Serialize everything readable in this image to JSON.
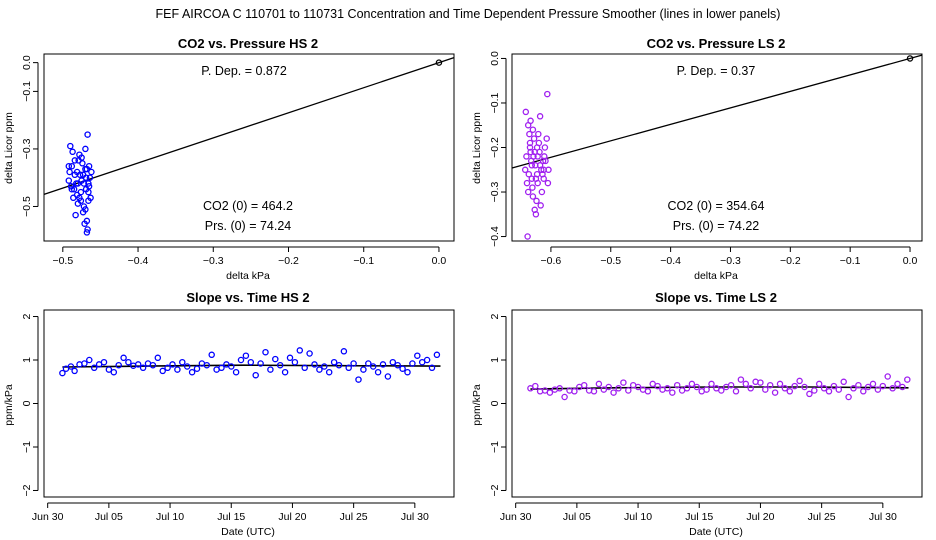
{
  "figure_title": "FEF   AIRCOA C   110701 to 110731   Concentration and Time Dependent Pressure Smoother (lines in lower panels)",
  "colors": {
    "hs": "#0000ff",
    "ls": "#a020f0",
    "axis": "#000000",
    "fit": "#000000"
  },
  "chart_data": [
    {
      "id": "pressure_hs",
      "type": "scatter",
      "title": "CO2 vs. Pressure HS 2",
      "xlabel": "delta kPa",
      "ylabel": "delta Licor ppm",
      "xlim": [
        -0.525,
        0.02
      ],
      "ylim": [
        -0.62,
        0.03
      ],
      "xticks": [
        -0.5,
        -0.4,
        -0.3,
        -0.2,
        -0.1,
        0.0
      ],
      "xtick_labels": [
        "−0.5",
        "−0.4",
        "−0.3",
        "−0.2",
        "−0.1",
        "0.0"
      ],
      "yticks": [
        -0.5,
        -0.3,
        -0.1,
        0.0
      ],
      "ytick_labels": [
        "−0.5",
        "−0.3",
        "−0.1",
        "0.0"
      ],
      "annotations": {
        "p_dep": "P. Dep. =  0.872",
        "co2_zero": "CO2 (0) =  464.2",
        "prs_zero": "Prs. (0) =  74.24"
      },
      "fit_line": {
        "slope": 0.872,
        "intercept": 0.0
      },
      "origin_point": [
        0.0,
        0.0
      ],
      "points": [
        [
          -0.492,
          -0.41
        ],
        [
          -0.488,
          -0.36
        ],
        [
          -0.485,
          -0.44
        ],
        [
          -0.481,
          -0.38
        ],
        [
          -0.478,
          -0.47
        ],
        [
          -0.475,
          -0.33
        ],
        [
          -0.472,
          -0.42
        ],
        [
          -0.47,
          -0.51
        ],
        [
          -0.468,
          -0.37
        ],
        [
          -0.466,
          -0.45
        ],
        [
          -0.49,
          -0.29
        ],
        [
          -0.487,
          -0.31
        ],
        [
          -0.483,
          -0.53
        ],
        [
          -0.48,
          -0.49
        ],
        [
          -0.477,
          -0.39
        ],
        [
          -0.474,
          -0.35
        ],
        [
          -0.471,
          -0.56
        ],
        [
          -0.469,
          -0.4
        ],
        [
          -0.467,
          -0.58
        ],
        [
          -0.465,
          -0.43
        ],
        [
          -0.491,
          -0.38
        ],
        [
          -0.486,
          -0.47
        ],
        [
          -0.482,
          -0.42
        ],
        [
          -0.479,
          -0.34
        ],
        [
          -0.476,
          -0.45
        ],
        [
          -0.473,
          -0.52
        ],
        [
          -0.47,
          -0.37
        ],
        [
          -0.468,
          -0.59
        ],
        [
          -0.466,
          -0.48
        ],
        [
          -0.464,
          -0.4
        ],
        [
          -0.489,
          -0.43
        ],
        [
          -0.484,
          -0.39
        ],
        [
          -0.481,
          -0.46
        ],
        [
          -0.478,
          -0.32
        ],
        [
          -0.475,
          -0.41
        ],
        [
          -0.472,
          -0.5
        ],
        [
          -0.469,
          -0.44
        ],
        [
          -0.467,
          -0.25
        ],
        [
          -0.465,
          -0.36
        ],
        [
          -0.463,
          -0.47
        ],
        [
          -0.492,
          -0.36
        ],
        [
          -0.488,
          -0.44
        ],
        [
          -0.484,
          -0.34
        ],
        [
          -0.48,
          -0.42
        ],
        [
          -0.476,
          -0.48
        ],
        [
          -0.473,
          -0.39
        ],
        [
          -0.47,
          -0.3
        ],
        [
          -0.468,
          -0.55
        ],
        [
          -0.466,
          -0.42
        ],
        [
          -0.462,
          -0.38
        ]
      ]
    },
    {
      "id": "pressure_ls",
      "type": "scatter",
      "title": "CO2 vs. Pressure LS 2",
      "xlabel": "delta kPa",
      "ylabel": "delta Licor ppm",
      "xlim": [
        -0.665,
        0.02
      ],
      "ylim": [
        -0.41,
        0.01
      ],
      "xticks": [
        -0.6,
        -0.5,
        -0.4,
        -0.3,
        -0.2,
        -0.1,
        0.0
      ],
      "xtick_labels": [
        "−0.6",
        "−0.5",
        "−0.4",
        "−0.3",
        "−0.2",
        "−0.1",
        "0.0"
      ],
      "yticks": [
        -0.4,
        -0.3,
        -0.2,
        -0.1,
        0.0
      ],
      "ytick_labels": [
        "−0.4",
        "−0.3",
        "−0.2",
        "−0.1",
        "0.0"
      ],
      "annotations": {
        "p_dep": "P. Dep. =  0.37",
        "co2_zero": "CO2 (0) =  354.64",
        "prs_zero": "Prs. (0) =  74.22"
      },
      "fit_line": {
        "slope": 0.37,
        "intercept": 0.0
      },
      "origin_point": [
        0.0,
        0.0
      ],
      "points": [
        [
          -0.642,
          -0.12
        ],
        [
          -0.638,
          -0.15
        ],
        [
          -0.635,
          -0.2
        ],
        [
          -0.632,
          -0.24
        ],
        [
          -0.628,
          -0.18
        ],
        [
          -0.625,
          -0.27
        ],
        [
          -0.622,
          -0.22
        ],
        [
          -0.618,
          -0.13
        ],
        [
          -0.615,
          -0.3
        ],
        [
          -0.612,
          -0.25
        ],
        [
          -0.64,
          -0.28
        ],
        [
          -0.636,
          -0.17
        ],
        [
          -0.633,
          -0.23
        ],
        [
          -0.63,
          -0.31
        ],
        [
          -0.627,
          -0.21
        ],
        [
          -0.623,
          -0.26
        ],
        [
          -0.62,
          -0.19
        ],
        [
          -0.617,
          -0.33
        ],
        [
          -0.613,
          -0.23
        ],
        [
          -0.61,
          -0.2
        ],
        [
          -0.641,
          -0.22
        ],
        [
          -0.637,
          -0.26
        ],
        [
          -0.634,
          -0.14
        ],
        [
          -0.631,
          -0.29
        ],
        [
          -0.626,
          -0.24
        ],
        [
          -0.624,
          -0.32
        ],
        [
          -0.621,
          -0.17
        ],
        [
          -0.616,
          -0.25
        ],
        [
          -0.611,
          -0.22
        ],
        [
          -0.606,
          -0.08
        ],
        [
          -0.639,
          -0.4
        ],
        [
          -0.635,
          -0.19
        ],
        [
          -0.632,
          -0.27
        ],
        [
          -0.629,
          -0.22
        ],
        [
          -0.625,
          -0.35
        ],
        [
          -0.622,
          -0.28
        ],
        [
          -0.619,
          -0.21
        ],
        [
          -0.614,
          -0.26
        ],
        [
          -0.609,
          -0.23
        ],
        [
          -0.605,
          -0.28
        ],
        [
          -0.643,
          -0.25
        ],
        [
          -0.638,
          -0.3
        ],
        [
          -0.634,
          -0.21
        ],
        [
          -0.63,
          -0.16
        ],
        [
          -0.627,
          -0.34
        ],
        [
          -0.623,
          -0.2
        ],
        [
          -0.618,
          -0.24
        ],
        [
          -0.612,
          -0.27
        ],
        [
          -0.607,
          -0.18
        ],
        [
          -0.604,
          -0.25
        ]
      ]
    },
    {
      "id": "slope_hs",
      "type": "scatter",
      "title": "Slope vs. Time HS 2",
      "xlabel": "Date (UTC)",
      "ylabel": "ppm/kPa",
      "xlim": [
        -0.3,
        33.2
      ],
      "ylim": [
        -2.15,
        2.15
      ],
      "xticks": [
        0,
        5,
        10,
        15,
        20,
        25,
        30
      ],
      "xtick_labels": [
        "Jun 30",
        "Jul 05",
        "Jul 10",
        "Jul 15",
        "Jul 20",
        "Jul 25",
        "Jul 30"
      ],
      "yticks": [
        -2,
        -1,
        0,
        1,
        2
      ],
      "ytick_labels": [
        "−2",
        "−1",
        "0",
        "1",
        "2"
      ],
      "smoother": [
        [
          1.2,
          0.84
        ],
        [
          8,
          0.86
        ],
        [
          16,
          0.88
        ],
        [
          24,
          0.87
        ],
        [
          32.1,
          0.86
        ]
      ],
      "points": [
        [
          1.2,
          0.7
        ],
        [
          1.5,
          0.8
        ],
        [
          1.9,
          0.85
        ],
        [
          2.2,
          0.75
        ],
        [
          2.6,
          0.9
        ],
        [
          3.0,
          0.92
        ],
        [
          3.4,
          1.0
        ],
        [
          3.8,
          0.82
        ],
        [
          4.2,
          0.9
        ],
        [
          4.6,
          0.95
        ],
        [
          5.0,
          0.78
        ],
        [
          5.4,
          0.72
        ],
        [
          5.8,
          0.88
        ],
        [
          6.2,
          1.05
        ],
        [
          6.6,
          0.95
        ],
        [
          7.0,
          0.87
        ],
        [
          7.4,
          0.9
        ],
        [
          7.8,
          0.82
        ],
        [
          8.2,
          0.92
        ],
        [
          8.6,
          0.88
        ],
        [
          9.0,
          1.05
        ],
        [
          9.4,
          0.75
        ],
        [
          9.8,
          0.82
        ],
        [
          10.2,
          0.9
        ],
        [
          10.6,
          0.78
        ],
        [
          11.0,
          0.95
        ],
        [
          11.4,
          0.85
        ],
        [
          11.8,
          0.72
        ],
        [
          12.2,
          0.8
        ],
        [
          12.6,
          0.92
        ],
        [
          13.0,
          0.88
        ],
        [
          13.4,
          1.12
        ],
        [
          13.8,
          0.78
        ],
        [
          14.2,
          0.82
        ],
        [
          14.6,
          0.9
        ],
        [
          15.0,
          0.85
        ],
        [
          15.4,
          0.72
        ],
        [
          15.8,
          1.0
        ],
        [
          16.2,
          1.1
        ],
        [
          16.6,
          0.95
        ],
        [
          17.0,
          0.65
        ],
        [
          17.4,
          0.92
        ],
        [
          17.8,
          1.18
        ],
        [
          18.2,
          0.78
        ],
        [
          18.6,
          1.02
        ],
        [
          19.0,
          0.88
        ],
        [
          19.4,
          0.72
        ],
        [
          19.8,
          1.05
        ],
        [
          20.2,
          0.95
        ],
        [
          20.6,
          1.22
        ],
        [
          21.0,
          0.82
        ],
        [
          21.4,
          1.15
        ],
        [
          21.8,
          0.9
        ],
        [
          22.2,
          0.78
        ],
        [
          22.6,
          0.85
        ],
        [
          23.0,
          0.72
        ],
        [
          23.4,
          0.95
        ],
        [
          23.8,
          0.88
        ],
        [
          24.2,
          1.2
        ],
        [
          24.6,
          0.82
        ],
        [
          25.0,
          0.92
        ],
        [
          25.4,
          0.55
        ],
        [
          25.8,
          0.78
        ],
        [
          26.2,
          0.92
        ],
        [
          26.6,
          0.85
        ],
        [
          27.0,
          0.72
        ],
        [
          27.4,
          0.9
        ],
        [
          27.8,
          0.62
        ],
        [
          28.2,
          0.95
        ],
        [
          28.6,
          0.88
        ],
        [
          29.0,
          0.8
        ],
        [
          29.4,
          0.72
        ],
        [
          29.8,
          0.92
        ],
        [
          30.2,
          1.1
        ],
        [
          30.6,
          0.95
        ],
        [
          31.0,
          1.0
        ],
        [
          31.4,
          0.82
        ],
        [
          31.8,
          1.12
        ]
      ]
    },
    {
      "id": "slope_ls",
      "type": "scatter",
      "title": "Slope vs. Time LS 2",
      "xlabel": "Date (UTC)",
      "ylabel": "ppm/kPa",
      "xlim": [
        -0.3,
        33.2
      ],
      "ylim": [
        -2.15,
        2.15
      ],
      "xticks": [
        0,
        5,
        10,
        15,
        20,
        25,
        30
      ],
      "xtick_labels": [
        "Jun 30",
        "Jul 05",
        "Jul 10",
        "Jul 15",
        "Jul 20",
        "Jul 25",
        "Jul 30"
      ],
      "yticks": [
        -2,
        -1,
        0,
        1,
        2
      ],
      "ytick_labels": [
        "−2",
        "−1",
        "0",
        "1",
        "2"
      ],
      "smoother": [
        [
          1.2,
          0.33
        ],
        [
          8,
          0.36
        ],
        [
          16,
          0.38
        ],
        [
          24,
          0.38
        ],
        [
          32.1,
          0.36
        ]
      ],
      "points": [
        [
          1.2,
          0.35
        ],
        [
          1.6,
          0.4
        ],
        [
          2.0,
          0.28
        ],
        [
          2.4,
          0.3
        ],
        [
          2.8,
          0.25
        ],
        [
          3.2,
          0.32
        ],
        [
          3.6,
          0.35
        ],
        [
          4.0,
          0.15
        ],
        [
          4.4,
          0.3
        ],
        [
          4.8,
          0.28
        ],
        [
          5.2,
          0.38
        ],
        [
          5.6,
          0.42
        ],
        [
          6.0,
          0.3
        ],
        [
          6.4,
          0.28
        ],
        [
          6.8,
          0.45
        ],
        [
          7.2,
          0.32
        ],
        [
          7.6,
          0.38
        ],
        [
          8.0,
          0.25
        ],
        [
          8.4,
          0.35
        ],
        [
          8.8,
          0.48
        ],
        [
          9.2,
          0.3
        ],
        [
          9.6,
          0.42
        ],
        [
          10.0,
          0.38
        ],
        [
          10.4,
          0.32
        ],
        [
          10.8,
          0.28
        ],
        [
          11.2,
          0.45
        ],
        [
          11.6,
          0.4
        ],
        [
          12.0,
          0.32
        ],
        [
          12.4,
          0.35
        ],
        [
          12.8,
          0.25
        ],
        [
          13.2,
          0.42
        ],
        [
          13.6,
          0.3
        ],
        [
          14.0,
          0.35
        ],
        [
          14.4,
          0.45
        ],
        [
          14.8,
          0.38
        ],
        [
          15.2,
          0.28
        ],
        [
          15.6,
          0.32
        ],
        [
          16.0,
          0.45
        ],
        [
          16.4,
          0.35
        ],
        [
          16.8,
          0.3
        ],
        [
          17.2,
          0.38
        ],
        [
          17.6,
          0.42
        ],
        [
          18.0,
          0.28
        ],
        [
          18.4,
          0.55
        ],
        [
          18.8,
          0.45
        ],
        [
          19.2,
          0.35
        ],
        [
          19.6,
          0.5
        ],
        [
          20.0,
          0.48
        ],
        [
          20.4,
          0.32
        ],
        [
          20.8,
          0.42
        ],
        [
          21.2,
          0.25
        ],
        [
          21.6,
          0.45
        ],
        [
          22.0,
          0.35
        ],
        [
          22.4,
          0.28
        ],
        [
          22.8,
          0.4
        ],
        [
          23.2,
          0.52
        ],
        [
          23.6,
          0.38
        ],
        [
          24.0,
          0.22
        ],
        [
          24.4,
          0.3
        ],
        [
          24.8,
          0.45
        ],
        [
          25.2,
          0.35
        ],
        [
          25.6,
          0.28
        ],
        [
          26.0,
          0.4
        ],
        [
          26.4,
          0.32
        ],
        [
          26.8,
          0.5
        ],
        [
          27.2,
          0.15
        ],
        [
          27.6,
          0.35
        ],
        [
          28.0,
          0.42
        ],
        [
          28.4,
          0.28
        ],
        [
          28.8,
          0.38
        ],
        [
          29.2,
          0.45
        ],
        [
          29.6,
          0.32
        ],
        [
          30.0,
          0.4
        ],
        [
          30.4,
          0.62
        ],
        [
          30.8,
          0.35
        ],
        [
          31.2,
          0.45
        ],
        [
          31.6,
          0.38
        ],
        [
          32.0,
          0.55
        ]
      ]
    }
  ]
}
